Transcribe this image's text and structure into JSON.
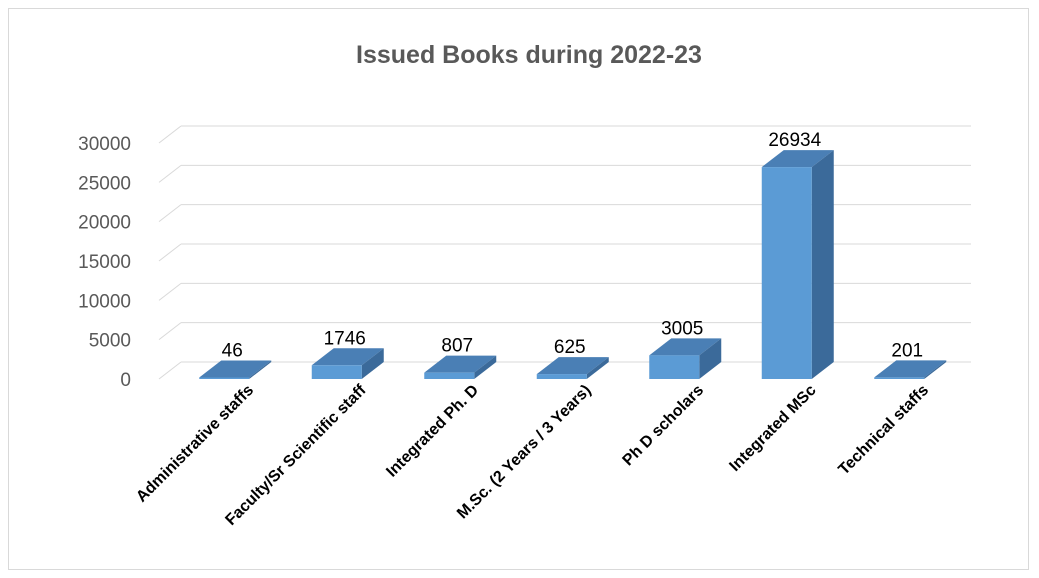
{
  "chart_data": {
    "type": "bar",
    "title": "Issued Books during 2022-23",
    "categories": [
      "Administrative staffs",
      "Faculty/Sr Scientific staff",
      "Integrated Ph. D",
      "M.Sc. (2 Years / 3 Years)",
      "Ph D scholars",
      "Integrated MSc",
      "Technical staffs"
    ],
    "values": [
      46,
      1746,
      807,
      625,
      3005,
      26934,
      201
    ],
    "ylim": [
      0,
      30000
    ],
    "yticks": [
      0,
      5000,
      10000,
      15000,
      20000,
      25000,
      30000
    ],
    "grid": true,
    "legend": "none",
    "colors": {
      "bar_front": "#5b9bd5",
      "bar_top": "#4a7fb5",
      "bar_side": "#3b6a9a",
      "grid": "#d9d9d9"
    }
  }
}
